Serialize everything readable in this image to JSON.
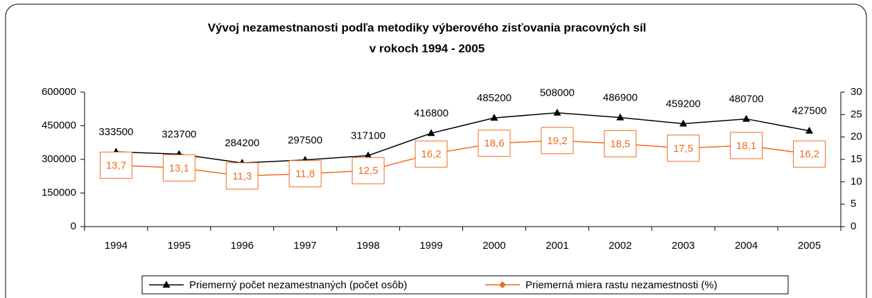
{
  "chart_data": {
    "type": "line",
    "title": [
      "Vývoj nezamestnanosti podľa metodiky výberového zisťovania pracovných síl",
      "v rokoch 1994 - 2005"
    ],
    "categories": [
      "1994",
      "1995",
      "1996",
      "1997",
      "1998",
      "1999",
      "2000",
      "2001",
      "2002",
      "2003",
      "2004",
      "2005"
    ],
    "series": [
      {
        "name": "Priemerný počet nezamestnaných (počet osôb)",
        "color": "#000000",
        "marker": "triangle",
        "values": [
          333500,
          323700,
          284200,
          297500,
          317100,
          416800,
          485200,
          508000,
          486900,
          459200,
          480700,
          427500
        ]
      },
      {
        "name": "Priemerná miera rastu nezamestnosti (%)",
        "color": "#f26a1b",
        "marker": "diamond",
        "axis": "y2",
        "values": [
          13.7,
          13.1,
          11.3,
          11.8,
          12.5,
          16.2,
          18.6,
          19.2,
          18.5,
          17.5,
          18.1,
          16.2
        ],
        "value_labels": [
          "13,7",
          "13,1",
          "11,3",
          "11,8",
          "12,5",
          "16,2",
          "18,6",
          "19,2",
          "18,5",
          "17,5",
          "18,1",
          "16,2"
        ]
      }
    ],
    "ylim": [
      0,
      600000
    ],
    "yticks": [
      0,
      150000,
      300000,
      450000,
      600000
    ],
    "y2lim": [
      0,
      30
    ],
    "y2ticks": [
      0,
      5,
      10,
      15,
      20,
      25,
      30
    ],
    "legend": "bottom"
  }
}
